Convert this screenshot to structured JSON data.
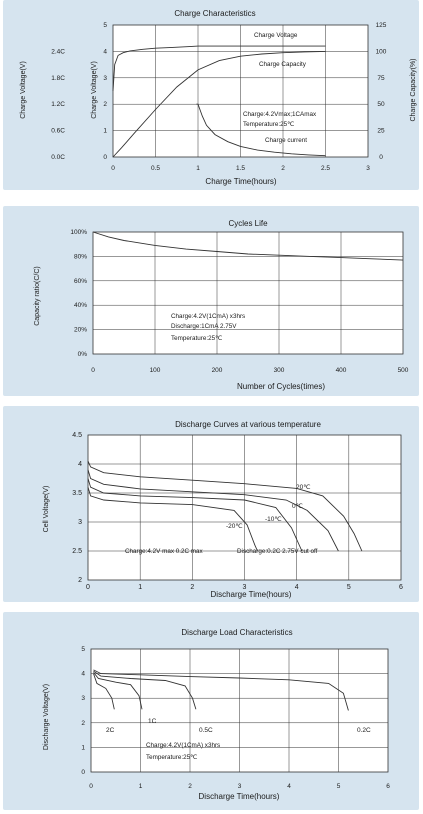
{
  "colors": {
    "panel_bg": "#d6e4ef",
    "plot_bg": "#ffffff",
    "grid": "#333333",
    "curve": "#333333"
  },
  "chart_data": [
    {
      "type": "line",
      "title": "Charge Characteristics",
      "xlabel": "Charge Time(hours)",
      "ylabel_outer": "Charge Voltage(V)",
      "ylabel_inner": "Charge Voltage(V)",
      "ylabel_right": "Charge Capacity(%)",
      "xlim": [
        0,
        3
      ],
      "ylim": [
        0,
        5
      ],
      "xticks": [
        "0",
        "0.5",
        "1",
        "1.5",
        "2",
        "2.5",
        "3"
      ],
      "yticks": [
        "0",
        "1",
        "2",
        "3",
        "4",
        "5"
      ],
      "yticks_outer": [
        "0.0C",
        "0.6C",
        "1.2C",
        "1.8C",
        "2.4C"
      ],
      "yticks_right": [
        "0",
        "25",
        "50",
        "75",
        "100",
        "125"
      ],
      "grid": true,
      "annotations": [
        "Charge Voltage",
        "Charge Capacity",
        "Charge:4.2Vmax;1CAmax",
        "Temperature:25℃",
        "Charge current"
      ],
      "series": [
        {
          "name": "Charge Voltage",
          "x": [
            0,
            0.02,
            0.06,
            0.12,
            0.2,
            0.35,
            0.5,
            0.7,
            0.9,
            1.0,
            1.3,
            1.6,
            2.0,
            2.5
          ],
          "y": [
            2.5,
            3.5,
            3.85,
            3.95,
            4.02,
            4.08,
            4.12,
            4.15,
            4.18,
            4.2,
            4.2,
            4.2,
            4.2,
            4.2
          ]
        },
        {
          "name": "Charge Capacity",
          "x": [
            0,
            0.1,
            0.25,
            0.5,
            0.75,
            1.0,
            1.25,
            1.5,
            1.75,
            2.0,
            2.25,
            2.5
          ],
          "y": [
            0,
            0.35,
            0.9,
            1.8,
            2.65,
            3.3,
            3.65,
            3.82,
            3.9,
            3.95,
            3.98,
            4.0
          ]
        },
        {
          "name": "Charge current",
          "x": [
            0.98,
            1.0,
            1.05,
            1.1,
            1.2,
            1.35,
            1.5,
            1.7,
            1.9,
            2.1,
            2.3,
            2.5
          ],
          "y": [
            2.0,
            2.0,
            1.55,
            1.2,
            0.85,
            0.58,
            0.4,
            0.26,
            0.18,
            0.12,
            0.08,
            0.05
          ]
        }
      ]
    },
    {
      "type": "line",
      "title": "Cycles Life",
      "xlabel": "Number of Cycles(times)",
      "ylabel": "Capacity ratio(C/C)",
      "xlim": [
        0,
        500
      ],
      "ylim": [
        0,
        100
      ],
      "xticks": [
        "0",
        "100",
        "200",
        "300",
        "400",
        "500"
      ],
      "yticks": [
        "0%",
        "20%",
        "40%",
        "60%",
        "80%",
        "100%"
      ],
      "grid": true,
      "annotations": [
        "Charge:4.2V(1CmA) x3hrs",
        "Discharge:1CmA 2.75V",
        "Temperature:25℃"
      ],
      "series": [
        {
          "name": "",
          "x": [
            0,
            25,
            50,
            100,
            150,
            200,
            250,
            300,
            350,
            400,
            450,
            500
          ],
          "y": [
            100,
            96,
            93,
            89,
            86,
            84,
            82,
            81,
            80,
            79,
            78,
            77
          ]
        }
      ]
    },
    {
      "type": "line",
      "title": "Discharge Curves at various temperature",
      "xlabel": "Discharge Time(hours)",
      "ylabel": "Cell Voltage(V)",
      "xlim": [
        0,
        6
      ],
      "ylim": [
        2,
        4.5
      ],
      "xticks": [
        "0",
        "1",
        "2",
        "3",
        "4",
        "5",
        "6"
      ],
      "yticks": [
        "2",
        "2.5",
        "3",
        "3.5",
        "4",
        "4.5"
      ],
      "grid": true,
      "annotations": [
        "Charge:4.2V max 0.2C max",
        "Discharge:0.2C 2.75V cut off"
      ],
      "series": [
        {
          "name": "20℃",
          "x": [
            0,
            0.05,
            0.3,
            1,
            2,
            3,
            4,
            4.5,
            4.9,
            5.1,
            5.25
          ],
          "y": [
            4.05,
            3.95,
            3.85,
            3.78,
            3.72,
            3.66,
            3.58,
            3.45,
            3.1,
            2.8,
            2.5
          ]
        },
        {
          "name": "0℃",
          "x": [
            0,
            0.05,
            0.3,
            1,
            2,
            3,
            3.8,
            4.2,
            4.6,
            4.8
          ],
          "y": [
            3.9,
            3.75,
            3.65,
            3.57,
            3.52,
            3.47,
            3.38,
            3.2,
            2.85,
            2.5
          ]
        },
        {
          "name": "-10℃",
          "x": [
            0,
            0.05,
            0.3,
            1,
            2,
            3,
            3.6,
            3.9,
            4.1
          ],
          "y": [
            3.75,
            3.6,
            3.5,
            3.45,
            3.42,
            3.38,
            3.25,
            2.9,
            2.5
          ]
        },
        {
          "name": "-20℃",
          "x": [
            0,
            0.05,
            0.3,
            1,
            2,
            2.8,
            3.05,
            3.2,
            3.25
          ],
          "y": [
            3.6,
            3.45,
            3.38,
            3.33,
            3.3,
            3.2,
            2.95,
            2.6,
            2.5
          ]
        }
      ]
    },
    {
      "type": "line",
      "title": "Discharge Load Characteristics",
      "xlabel": "Discharge Time(hours)",
      "ylabel": "Discharge Voltage(V)",
      "xlim": [
        0,
        6
      ],
      "ylim": [
        0,
        5
      ],
      "xticks": [
        "0",
        "1",
        "2",
        "3",
        "4",
        "5",
        "6"
      ],
      "yticks": [
        "0",
        "1",
        "2",
        "3",
        "4",
        "5"
      ],
      "grid": true,
      "annotations": [
        "Charge:4.2V(1CmA) x3hrs",
        "Temperature:25℃"
      ],
      "series": [
        {
          "name": "0.2C",
          "x": [
            0.05,
            0.2,
            1,
            2,
            3,
            4,
            4.8,
            5.1,
            5.2
          ],
          "y": [
            4.15,
            4.0,
            3.95,
            3.88,
            3.82,
            3.75,
            3.6,
            3.2,
            2.5
          ]
        },
        {
          "name": "0.5C",
          "x": [
            0.05,
            0.2,
            0.8,
            1.5,
            1.9,
            2.05,
            2.12
          ],
          "y": [
            4.1,
            3.9,
            3.8,
            3.72,
            3.5,
            3.0,
            2.55
          ]
        },
        {
          "name": "1C",
          "x": [
            0.05,
            0.15,
            0.5,
            0.8,
            0.97,
            1.03
          ],
          "y": [
            4.05,
            3.8,
            3.65,
            3.55,
            3.1,
            2.55
          ]
        },
        {
          "name": "2C",
          "x": [
            0.05,
            0.12,
            0.3,
            0.42,
            0.47
          ],
          "y": [
            4.0,
            3.6,
            3.4,
            3.0,
            2.55
          ]
        }
      ],
      "series_labels": [
        "2C",
        "1C",
        "0.5C",
        "0.2C"
      ]
    }
  ]
}
